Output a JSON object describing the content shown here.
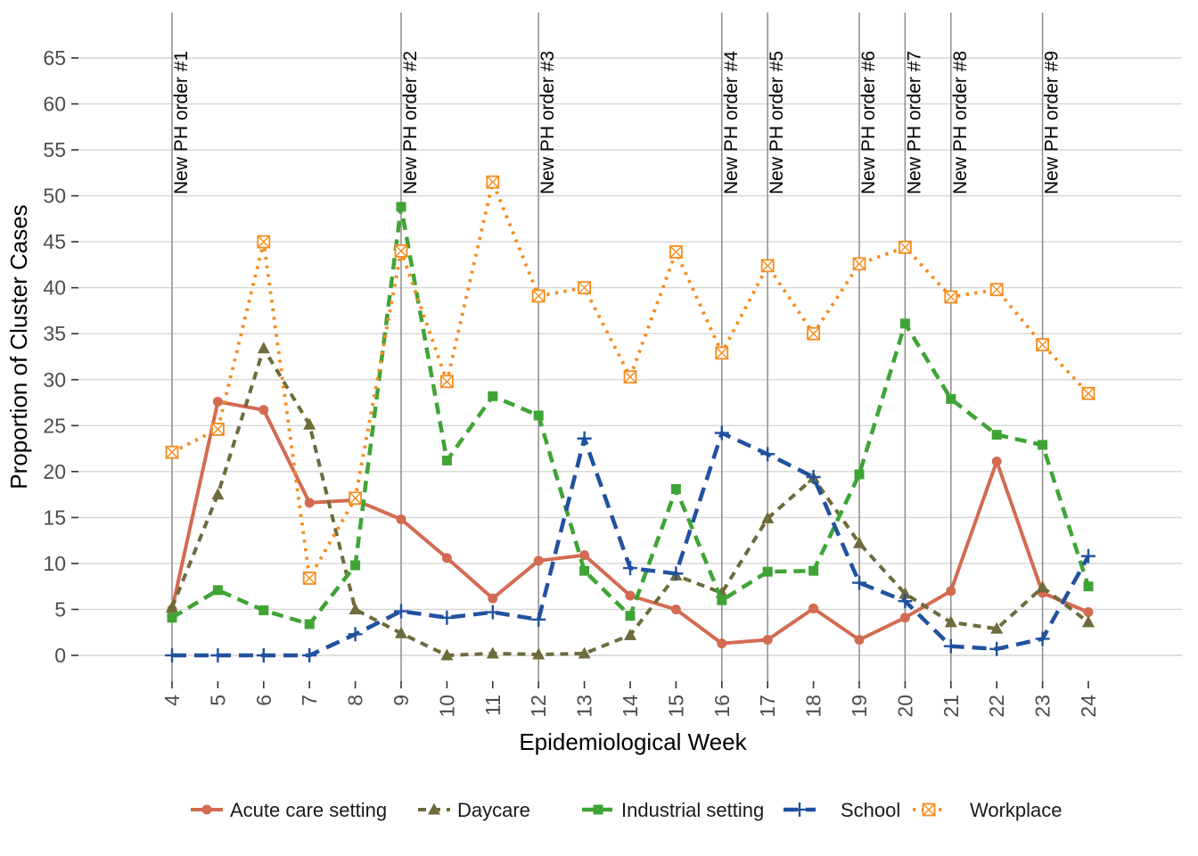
{
  "chart_data": {
    "type": "line",
    "title": "",
    "xlabel": "Epidemiological Week",
    "ylabel": "Proportion of Cluster Cases",
    "x": [
      4,
      5,
      6,
      7,
      8,
      9,
      10,
      11,
      12,
      13,
      14,
      15,
      16,
      17,
      18,
      19,
      20,
      21,
      22,
      23,
      24
    ],
    "y_ticks": [
      0,
      5,
      10,
      15,
      20,
      25,
      30,
      35,
      40,
      45,
      50,
      55,
      60,
      65
    ],
    "ylim": [
      0,
      68
    ],
    "grid": "horizontal-major-only",
    "legend_position": "bottom",
    "colors": {
      "gridline": "#d6d6d6",
      "vline": "#8c8c8c",
      "tick_label": "#4d4d4d"
    },
    "vlines": [
      {
        "week": 4,
        "label": "New PH order #1"
      },
      {
        "week": 9,
        "label": "New PH order #2"
      },
      {
        "week": 12,
        "label": "New PH order #3"
      },
      {
        "week": 16,
        "label": "New PH order #4"
      },
      {
        "week": 17,
        "label": "New PH order #5"
      },
      {
        "week": 19,
        "label": "New PH order #6"
      },
      {
        "week": 20,
        "label": "New PH order #7"
      },
      {
        "week": 21,
        "label": "New PH order #8"
      },
      {
        "week": 23,
        "label": "New PH order #9"
      }
    ],
    "series": [
      {
        "name": "Acute care setting",
        "color": "#d36b52",
        "marker": "circle",
        "line": "solid",
        "dash": "",
        "width": 4,
        "values": [
          5.0,
          27.6,
          26.7,
          16.6,
          16.9,
          14.8,
          10.6,
          6.2,
          10.3,
          10.9,
          6.5,
          5.0,
          1.3,
          1.7,
          5.1,
          1.7,
          4.1,
          7.0,
          21.1,
          6.8,
          4.7
        ]
      },
      {
        "name": "Daycare",
        "color": "#6e6b3c",
        "marker": "triangle",
        "line": "dashed",
        "dash": "9 7",
        "width": 4,
        "values": [
          5.2,
          17.5,
          33.4,
          25.1,
          5.0,
          2.4,
          0.0,
          0.2,
          0.1,
          0.2,
          2.2,
          8.7,
          6.8,
          14.9,
          19.3,
          12.2,
          6.7,
          3.6,
          2.9,
          7.4,
          3.6
        ]
      },
      {
        "name": "Industrial setting",
        "color": "#3fa435",
        "marker": "square",
        "line": "dashed",
        "dash": "13 8",
        "width": 4.5,
        "values": [
          4.1,
          7.1,
          4.9,
          3.4,
          9.8,
          48.8,
          21.2,
          28.2,
          26.1,
          9.2,
          4.3,
          18.1,
          6.0,
          9.1,
          9.2,
          19.7,
          36.1,
          27.9,
          24.0,
          22.9,
          7.5
        ]
      },
      {
        "name": "School",
        "color": "#21519f",
        "marker": "plus",
        "line": "dashed",
        "dash": "16 9",
        "width": 4.5,
        "values": [
          0.0,
          0.0,
          0.0,
          0.0,
          2.3,
          4.8,
          4.1,
          4.7,
          3.9,
          23.6,
          9.5,
          8.9,
          24.2,
          21.9,
          19.4,
          7.9,
          5.9,
          1.0,
          0.7,
          1.8,
          10.8
        ]
      },
      {
        "name": "Workplace",
        "color": "#f78b1c",
        "marker": "crossed-square",
        "line": "dotted",
        "dash": "3.2 6.5",
        "width": 3.8,
        "values": [
          22.1,
          24.6,
          45.0,
          8.4,
          17.1,
          44.0,
          29.8,
          51.5,
          39.1,
          40.0,
          30.3,
          43.9,
          32.9,
          42.4,
          35.0,
          42.6,
          44.4,
          39.0,
          39.8,
          33.8,
          28.5
        ]
      }
    ]
  }
}
